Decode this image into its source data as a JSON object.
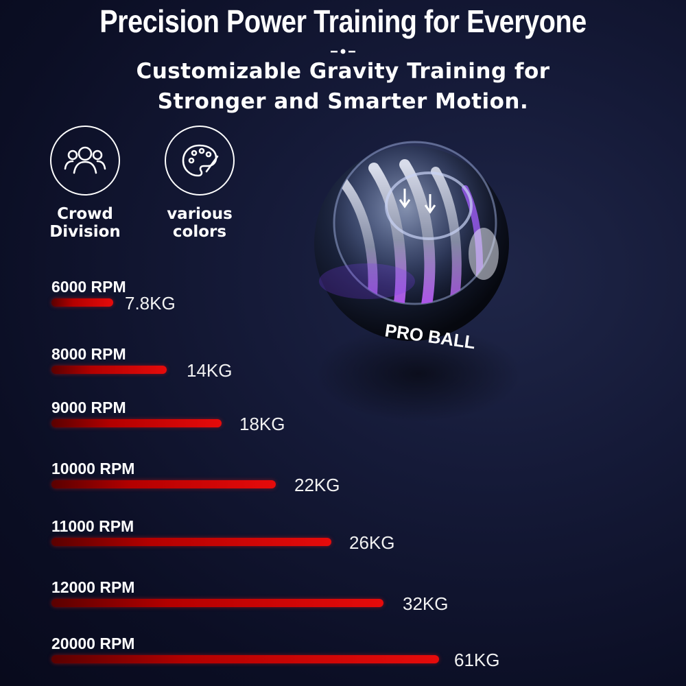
{
  "header": {
    "title": "Precision Power Training for Everyone",
    "subtitle_line1": "Customizable Gravity Training for",
    "subtitle_line2": "Stronger and Smarter Motion."
  },
  "features": [
    {
      "icon": "people-icon",
      "line1": "Crowd",
      "line2": "Division"
    },
    {
      "icon": "palette-icon",
      "line1": "various",
      "line2": "colors"
    }
  ],
  "product": {
    "brand_text": "PRO BALL"
  },
  "levels": [
    {
      "rpm": "6000 RPM",
      "weight": "7.8KG",
      "kg_value": 7.8
    },
    {
      "rpm": "8000 RPM",
      "weight": "14KG",
      "kg_value": 14
    },
    {
      "rpm": "9000 RPM",
      "weight": "18KG",
      "kg_value": 18
    },
    {
      "rpm": "10000 RPM",
      "weight": "22KG",
      "kg_value": 22
    },
    {
      "rpm": "11000 RPM",
      "weight": "26KG",
      "kg_value": 26
    },
    {
      "rpm": "12000 RPM",
      "weight": "32KG",
      "kg_value": 32
    },
    {
      "rpm": "20000 RPM",
      "weight": "61KG",
      "kg_value": 61
    }
  ],
  "colors": {
    "bar_red": "#e60b0b",
    "background": "#151a38",
    "ring_purple": "#b04cf0"
  }
}
